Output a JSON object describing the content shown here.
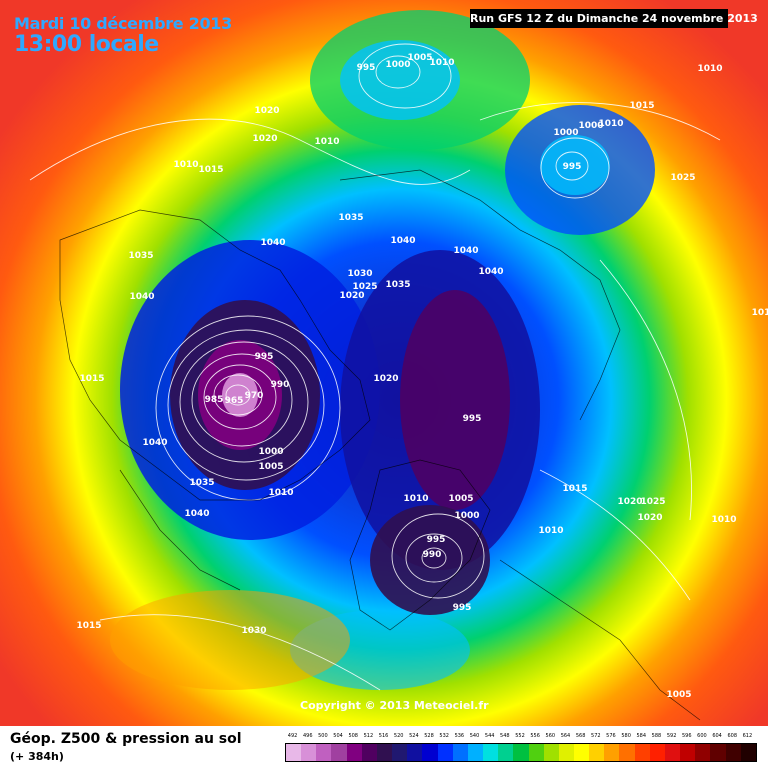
{
  "header": {
    "date": "Mardi 10 décembre 2013",
    "time": "13:00 locale",
    "run": "Run GFS 12 Z du Dimanche 24 novembre 2013"
  },
  "copyright": "Copyright © 2013 Meteociel.fr",
  "footer": {
    "title": "Géop. Z500 & pression au sol",
    "subtitle": "(+ 384h)"
  },
  "legend": {
    "labels": [
      "492",
      "496",
      "500",
      "504",
      "508",
      "512",
      "516",
      "520",
      "524",
      "528",
      "532",
      "536",
      "540",
      "544",
      "548",
      "552",
      "556",
      "560",
      "564",
      "568",
      "572",
      "576",
      "580",
      "584",
      "588",
      "592",
      "596",
      "600",
      "604",
      "608",
      "612"
    ],
    "colors": [
      "#e8b8e8",
      "#d890d8",
      "#c060c0",
      "#a040a0",
      "#800080",
      "#500060",
      "#301050",
      "#201870",
      "#1010a0",
      "#0000d0",
      "#0030ff",
      "#0070ff",
      "#00b0ff",
      "#00e0e0",
      "#00d090",
      "#00c040",
      "#50d010",
      "#a0e000",
      "#e0f000",
      "#ffff00",
      "#ffd000",
      "#ffa000",
      "#ff7000",
      "#ff4000",
      "#ff2000",
      "#e01010",
      "#c00000",
      "#900000",
      "#600000",
      "#400000",
      "#200000"
    ]
  },
  "isobars": [
    {
      "v": "995"
    },
    {
      "v": "1000"
    },
    {
      "v": "1005"
    },
    {
      "v": "1010"
    },
    {
      "v": "1010"
    },
    {
      "v": "1020"
    },
    {
      "v": "1020"
    },
    {
      "v": "1010"
    },
    {
      "v": "1010"
    },
    {
      "v": "1015"
    },
    {
      "v": "1000"
    },
    {
      "v": "1000"
    },
    {
      "v": "1010"
    },
    {
      "v": "995"
    },
    {
      "v": "1015"
    },
    {
      "v": "1025"
    },
    {
      "v": "1035"
    },
    {
      "v": "1040"
    },
    {
      "v": "1040"
    },
    {
      "v": "1040"
    },
    {
      "v": "1035"
    },
    {
      "v": "1030"
    },
    {
      "v": "1025"
    },
    {
      "v": "1020"
    },
    {
      "v": "1035"
    },
    {
      "v": "1040"
    },
    {
      "v": "1040"
    },
    {
      "v": "1015"
    },
    {
      "v": "995"
    },
    {
      "v": "990"
    },
    {
      "v": "985"
    },
    {
      "v": "965"
    },
    {
      "v": "970"
    },
    {
      "v": "1020"
    },
    {
      "v": "1000"
    },
    {
      "v": "1005"
    },
    {
      "v": "1010"
    },
    {
      "v": "1040"
    },
    {
      "v": "1035"
    },
    {
      "v": "1040"
    },
    {
      "v": "995"
    },
    {
      "v": "1010"
    },
    {
      "v": "1005"
    },
    {
      "v": "1000"
    },
    {
      "v": "995"
    },
    {
      "v": "990"
    },
    {
      "v": "1010"
    },
    {
      "v": "1015"
    },
    {
      "v": "1020"
    },
    {
      "v": "1025"
    },
    {
      "v": "1020"
    },
    {
      "v": "1010"
    },
    {
      "v": "995"
    },
    {
      "v": "1015"
    },
    {
      "v": "1030"
    },
    {
      "v": "1005"
    },
    {
      "v": "101"
    }
  ]
}
